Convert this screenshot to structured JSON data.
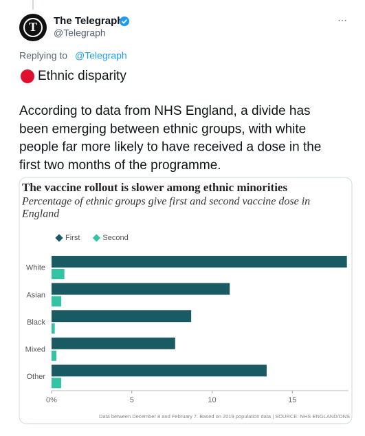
{
  "tweet": {
    "author": {
      "name": "The Telegraph",
      "handle": "@Telegraph"
    },
    "reply": {
      "prefix": "Replying to",
      "handle": "@Telegraph"
    },
    "headline": "Ethnic disparity",
    "body": [
      "According to data from NHS England, a divide has",
      "been emerging between ethnic groups, with white",
      "people far more likely to have received a dose in the",
      "first two months of the programme."
    ]
  },
  "chart_data": {
    "type": "bar",
    "orientation": "horizontal",
    "title": "The vaccine rollout is slower among ethnic minorities",
    "subtitle": [
      "Percentage of ethnic groups give first and second vaccine dose in",
      "England"
    ],
    "categories": [
      "White",
      "Asian",
      "Black",
      "Mixed",
      "Other"
    ],
    "series": [
      {
        "name": "First",
        "color": "#1a5a63",
        "values": [
          18.4,
          11.1,
          8.7,
          7.7,
          13.4
        ]
      },
      {
        "name": "Second",
        "color": "#33c3a5",
        "values": [
          0.8,
          0.6,
          0.2,
          0.3,
          0.6
        ]
      }
    ],
    "xlim": [
      0,
      18.5
    ],
    "xticks": [
      {
        "value": 0,
        "label": "0%"
      },
      5,
      10,
      15
    ],
    "note": "Data between December 8 and February 7. Based on 2019 population data | SOURCE: NHS ENGLAND/ONS"
  }
}
